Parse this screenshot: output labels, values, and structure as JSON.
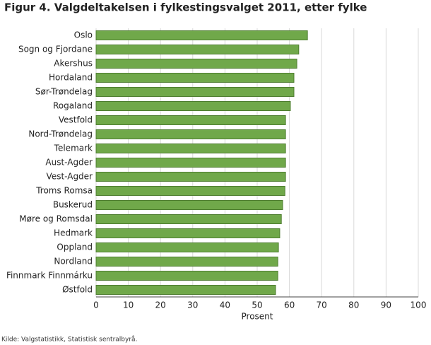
{
  "chart_data": {
    "type": "bar",
    "orientation": "horizontal",
    "title": "Figur 4. Valgdeltakelsen i fylkestingsvalget 2011, etter fylke",
    "xlabel": "Prosent",
    "source": "Kilde: Valgstatistikk, Statistisk sentralbyrå.",
    "categories": [
      "Oslo",
      "Sogn og Fjordane",
      "Akershus",
      "Hordaland",
      "Sør-Trøndelag",
      "Rogaland",
      "Vestfold",
      "Nord-Trøndelag",
      "Telemark",
      "Aust-Agder",
      "Vest-Agder",
      "Troms Romsa",
      "Buskerud",
      "Møre og Romsdal",
      "Hedmark",
      "Oppland",
      "Nordland",
      "Finnmark Finnmárku",
      "Østfold"
    ],
    "values": [
      65.6,
      62.9,
      62.3,
      61.4,
      61.4,
      60.3,
      58.8,
      58.8,
      58.8,
      58.8,
      58.8,
      58.6,
      57.9,
      57.5,
      57.0,
      56.6,
      56.4,
      56.4,
      55.7
    ],
    "color": "#70a84a",
    "xlim": [
      0,
      100
    ],
    "xticks": [
      0,
      10,
      20,
      30,
      40,
      50,
      60,
      70,
      80,
      90,
      100
    ],
    "grid": true
  }
}
